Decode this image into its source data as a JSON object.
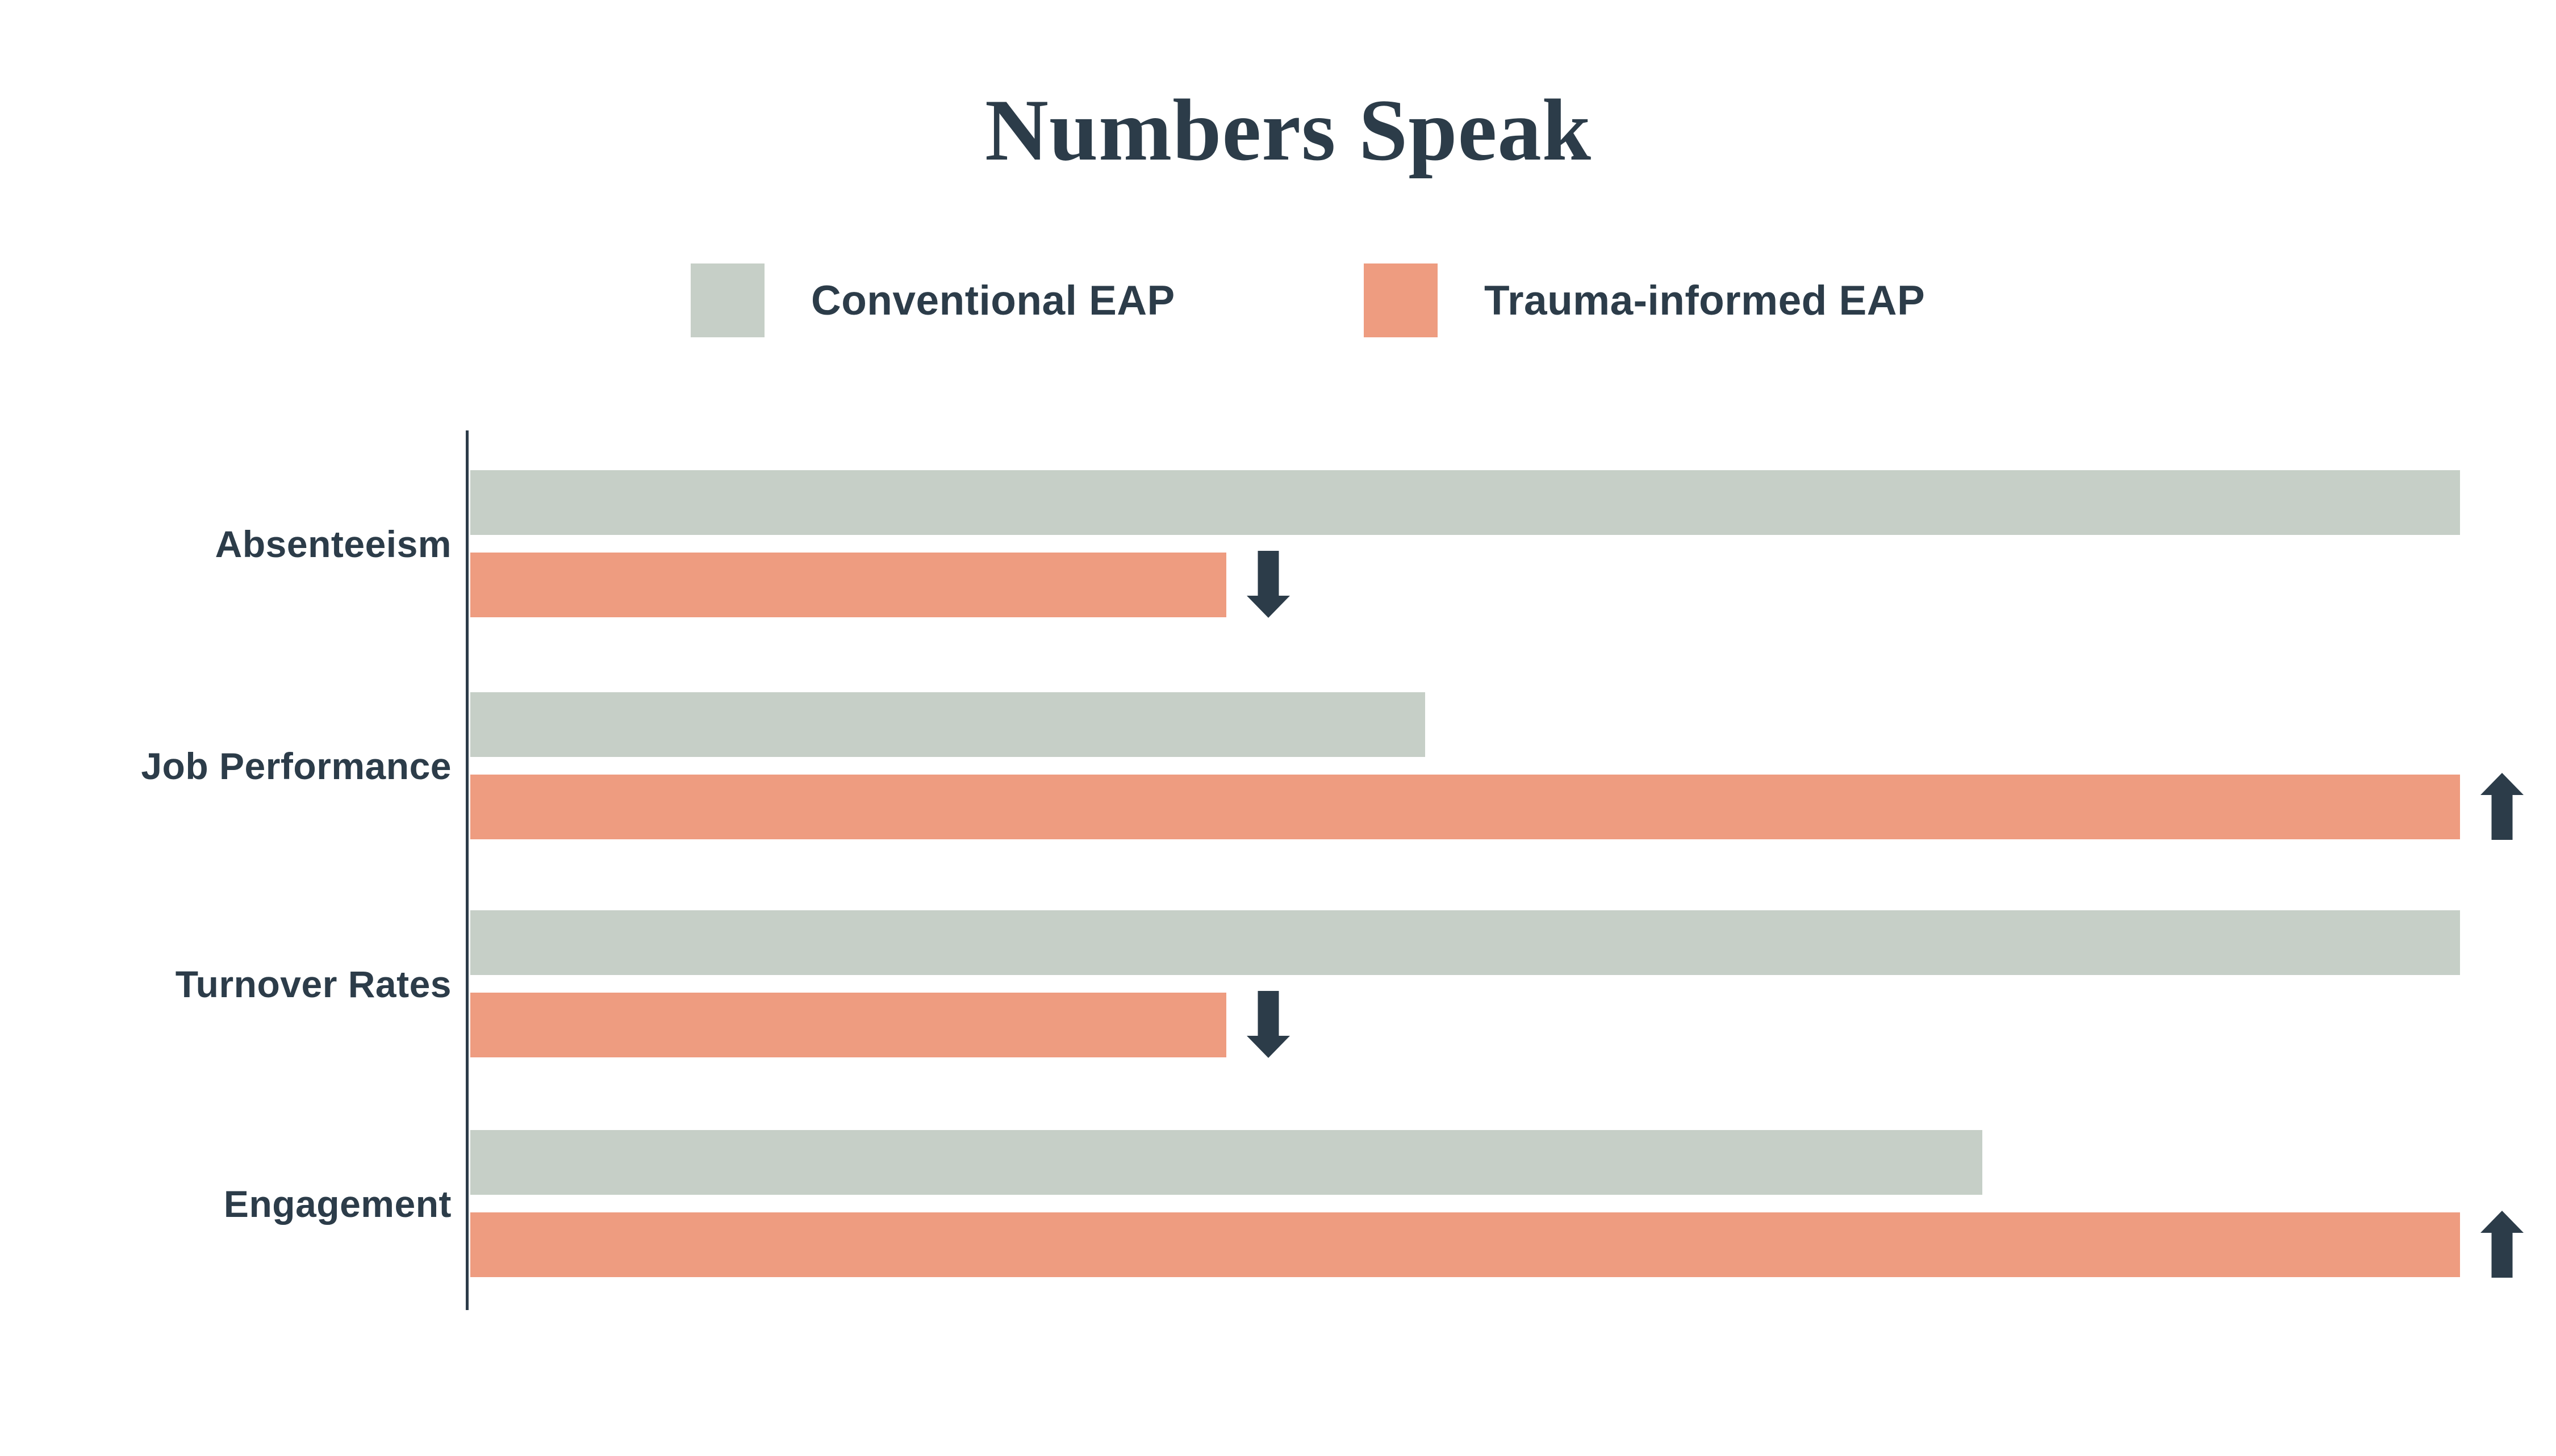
{
  "title": "Numbers Speak",
  "legend": [
    {
      "label": "Conventional EAP",
      "color": "#C6CFC7"
    },
    {
      "label": "Trauma-informed EAP",
      "color": "#EE9C80"
    }
  ],
  "colors": {
    "ink": "#2C3C49",
    "conventional": "#C6CFC7",
    "trauma": "#EE9C80",
    "background": "#FFFFFF"
  },
  "chart_data": {
    "type": "bar",
    "orientation": "horizontal",
    "title": "Numbers Speak",
    "categories": [
      "Absenteeism",
      "Job Performance",
      "Turnover Rates",
      "Engagement"
    ],
    "series": [
      {
        "name": "Conventional EAP",
        "color": "#C6CFC7",
        "values_pct": [
          100,
          48,
          100,
          76
        ]
      },
      {
        "name": "Trauma-informed EAP",
        "color": "#EE9C80",
        "values_pct": [
          38,
          100,
          38,
          100
        ]
      }
    ],
    "trend_arrows": [
      "down",
      "up",
      "down",
      "up"
    ],
    "value_axis": {
      "ticks_visible": false,
      "range_pct": [
        0,
        100
      ]
    },
    "grid": false,
    "legend_position": "top"
  }
}
